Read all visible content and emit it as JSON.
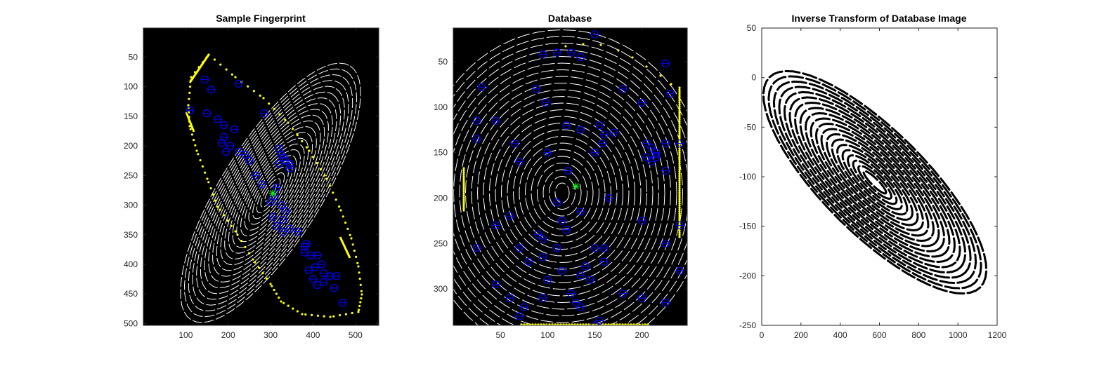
{
  "figure": {
    "panels": [
      {
        "title": "Sample Fingerprint"
      },
      {
        "title": "Database"
      },
      {
        "title": "Inverse Transform of Database Image"
      }
    ]
  },
  "colors": {
    "background": "#ffffff",
    "axes_dark": "#000000",
    "ridge": "#ffffff",
    "boundary": "#ffff00",
    "minutiae": "#0000ff",
    "core": "#00ff00",
    "inverse_ridge": "#000000"
  },
  "chart_data": [
    {
      "type": "scatter",
      "title": "Sample Fingerprint",
      "xlabel": "",
      "ylabel": "",
      "xlim": [
        0,
        555
      ],
      "ylim": [
        503,
        1
      ],
      "y_reversed": true,
      "xticks": [
        100,
        200,
        300,
        400,
        500
      ],
      "yticks": [
        50,
        100,
        150,
        200,
        250,
        300,
        350,
        400,
        450,
        500
      ],
      "series": [],
      "core_point": [
        305,
        280
      ],
      "minutiae": [
        [
          110,
          140
        ],
        [
          160,
          105
        ],
        [
          145,
          88
        ],
        [
          150,
          145
        ],
        [
          175,
          155
        ],
        [
          190,
          165
        ],
        [
          215,
          172
        ],
        [
          190,
          185
        ],
        [
          185,
          195
        ],
        [
          205,
          200
        ],
        [
          195,
          210
        ],
        [
          225,
          210
        ],
        [
          240,
          215
        ],
        [
          250,
          225
        ],
        [
          320,
          205
        ],
        [
          325,
          215
        ],
        [
          330,
          220
        ],
        [
          335,
          225
        ],
        [
          345,
          230
        ],
        [
          320,
          230
        ],
        [
          345,
          238
        ],
        [
          265,
          250
        ],
        [
          280,
          265
        ],
        [
          315,
          270
        ],
        [
          310,
          285
        ],
        [
          300,
          295
        ],
        [
          325,
          300
        ],
        [
          335,
          310
        ],
        [
          305,
          320
        ],
        [
          330,
          325
        ],
        [
          315,
          335
        ],
        [
          345,
          340
        ],
        [
          330,
          345
        ],
        [
          365,
          345
        ],
        [
          385,
          365
        ],
        [
          380,
          370
        ],
        [
          380,
          380
        ],
        [
          395,
          385
        ],
        [
          410,
          385
        ],
        [
          420,
          400
        ],
        [
          405,
          405
        ],
        [
          390,
          410
        ],
        [
          425,
          415
        ],
        [
          440,
          420
        ],
        [
          455,
          420
        ],
        [
          400,
          425
        ],
        [
          425,
          430
        ],
        [
          410,
          435
        ],
        [
          450,
          440
        ],
        [
          470,
          465
        ],
        [
          225,
          95
        ],
        [
          285,
          145
        ]
      ],
      "grid": false,
      "legend": "none"
    },
    {
      "type": "scatter",
      "title": "Database",
      "xlabel": "",
      "ylabel": "",
      "xlim": [
        0,
        248
      ],
      "ylim": [
        340,
        13
      ],
      "y_reversed": true,
      "xticks": [
        50,
        100,
        150,
        200
      ],
      "yticks": [
        50,
        100,
        150,
        200,
        250,
        300
      ],
      "series": [],
      "core_point": [
        130,
        187
      ],
      "minutiae": [
        [
          150,
          20
        ],
        [
          95,
          42
        ],
        [
          110,
          40
        ],
        [
          125,
          40
        ],
        [
          135,
          45
        ],
        [
          225,
          52
        ],
        [
          88,
          80
        ],
        [
          30,
          78
        ],
        [
          180,
          80
        ],
        [
          230,
          85
        ],
        [
          98,
          95
        ],
        [
          200,
          95
        ],
        [
          25,
          115
        ],
        [
          45,
          115
        ],
        [
          120,
          120
        ],
        [
          135,
          125
        ],
        [
          155,
          120
        ],
        [
          160,
          130
        ],
        [
          170,
          128
        ],
        [
          158,
          140
        ],
        [
          65,
          140
        ],
        [
          25,
          135
        ],
        [
          205,
          140
        ],
        [
          210,
          145
        ],
        [
          215,
          150
        ],
        [
          225,
          140
        ],
        [
          240,
          140
        ],
        [
          205,
          155
        ],
        [
          210,
          160
        ],
        [
          215,
          155
        ],
        [
          225,
          170
        ],
        [
          70,
          160
        ],
        [
          100,
          150
        ],
        [
          122,
          170
        ],
        [
          150,
          150
        ],
        [
          165,
          200
        ],
        [
          110,
          205
        ],
        [
          135,
          215
        ],
        [
          200,
          225
        ],
        [
          240,
          230
        ],
        [
          45,
          230
        ],
        [
          60,
          220
        ],
        [
          115,
          225
        ],
        [
          120,
          235
        ],
        [
          90,
          240
        ],
        [
          95,
          245
        ],
        [
          70,
          255
        ],
        [
          110,
          255
        ],
        [
          150,
          255
        ],
        [
          160,
          255
        ],
        [
          225,
          250
        ],
        [
          25,
          255
        ],
        [
          80,
          270
        ],
        [
          95,
          265
        ],
        [
          115,
          280
        ],
        [
          140,
          275
        ],
        [
          135,
          285
        ],
        [
          145,
          290
        ],
        [
          160,
          270
        ],
        [
          240,
          280
        ],
        [
          100,
          290
        ],
        [
          45,
          295
        ],
        [
          60,
          310
        ],
        [
          95,
          310
        ],
        [
          125,
          305
        ],
        [
          130,
          315
        ],
        [
          135,
          320
        ],
        [
          180,
          305
        ],
        [
          200,
          310
        ],
        [
          225,
          315
        ],
        [
          75,
          320
        ],
        [
          70,
          330
        ],
        [
          155,
          335
        ],
        [
          150,
          340
        ]
      ],
      "grid": false,
      "legend": "none"
    },
    {
      "type": "scatter",
      "title": "Inverse Transform of Database Image",
      "xlabel": "",
      "ylabel": "",
      "xlim": [
        0,
        1200
      ],
      "ylim": [
        -250,
        50
      ],
      "xticks": [
        0,
        200,
        400,
        600,
        800,
        1000,
        1200
      ],
      "yticks": [
        -250,
        -200,
        -150,
        -100,
        -50,
        0,
        50
      ],
      "series": [],
      "grid": false,
      "legend": "none"
    }
  ]
}
